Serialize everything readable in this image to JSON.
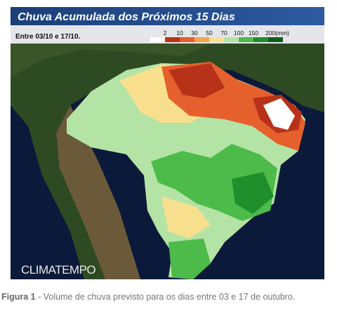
{
  "header": {
    "title": "Chuva Acumulada dos Próximos 15 Dias",
    "subtitle": "Entre 03/10 e 17/10."
  },
  "legend": {
    "colors": [
      "#ffffff",
      "#b8321a",
      "#e5602c",
      "#f3a649",
      "#f8df8e",
      "#b4e3a6",
      "#4cbb4a",
      "#1f8f2c",
      "#0d5d1b"
    ],
    "labels": [
      "2",
      "10",
      "30",
      "50",
      "70",
      "100",
      "150",
      "200(mm)"
    ]
  },
  "watermark": "CLIMATEMPO",
  "caption": {
    "label": "Figura 1",
    "text": "- Volume de chuva previsto para os dias entre 03 e 17 de outubro."
  }
}
